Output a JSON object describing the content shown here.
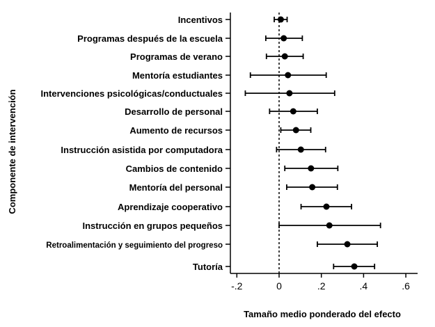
{
  "chart_data": {
    "type": "forest",
    "xlabel": "Tamaño medio ponderado del efecto",
    "ylabel": "Componente de intervención",
    "xlim": [
      -0.23,
      0.61
    ],
    "xticks": [
      -0.2,
      0,
      0.2,
      0.4,
      0.6
    ],
    "xtick_labels": [
      "-.2",
      "0",
      ".2",
      ".4",
      ".6"
    ],
    "reference_line": 0,
    "grid": false,
    "rows": [
      {
        "label": "Incentivos",
        "estimate": 0.008,
        "lower": -0.023,
        "upper": 0.038
      },
      {
        "label": "Programas después de la escuela",
        "estimate": 0.022,
        "lower": -0.063,
        "upper": 0.11
      },
      {
        "label": "Programas de verano",
        "estimate": 0.027,
        "lower": -0.06,
        "upper": 0.114
      },
      {
        "label": "Mentoría estudiantes",
        "estimate": 0.042,
        "lower": -0.136,
        "upper": 0.223
      },
      {
        "label": "Intervenciones psicológicas/conductuales",
        "estimate": 0.049,
        "lower": -0.16,
        "upper": 0.263
      },
      {
        "label": "Desarrollo de personal",
        "estimate": 0.067,
        "lower": -0.045,
        "upper": 0.181
      },
      {
        "label": "Aumento de recursos",
        "estimate": 0.08,
        "lower": 0.008,
        "upper": 0.15
      },
      {
        "label": "Instrucción asistida por computadora",
        "estimate": 0.103,
        "lower": -0.012,
        "upper": 0.22
      },
      {
        "label": "Cambios de contenido",
        "estimate": 0.151,
        "lower": 0.027,
        "upper": 0.278
      },
      {
        "label": "Mentoría del personal",
        "estimate": 0.157,
        "lower": 0.036,
        "upper": 0.276
      },
      {
        "label": "Aprendizaje cooperativo",
        "estimate": 0.224,
        "lower": 0.104,
        "upper": 0.343
      },
      {
        "label": "Instrucción en grupos pequeños",
        "estimate": 0.238,
        "lower": 0.0,
        "upper": 0.48
      },
      {
        "label": "Retroalimentación y seguimiento del progreso",
        "estimate": 0.323,
        "lower": 0.181,
        "upper": 0.465
      },
      {
        "label": "Tutoría",
        "estimate": 0.356,
        "lower": 0.258,
        "upper": 0.452
      }
    ]
  }
}
